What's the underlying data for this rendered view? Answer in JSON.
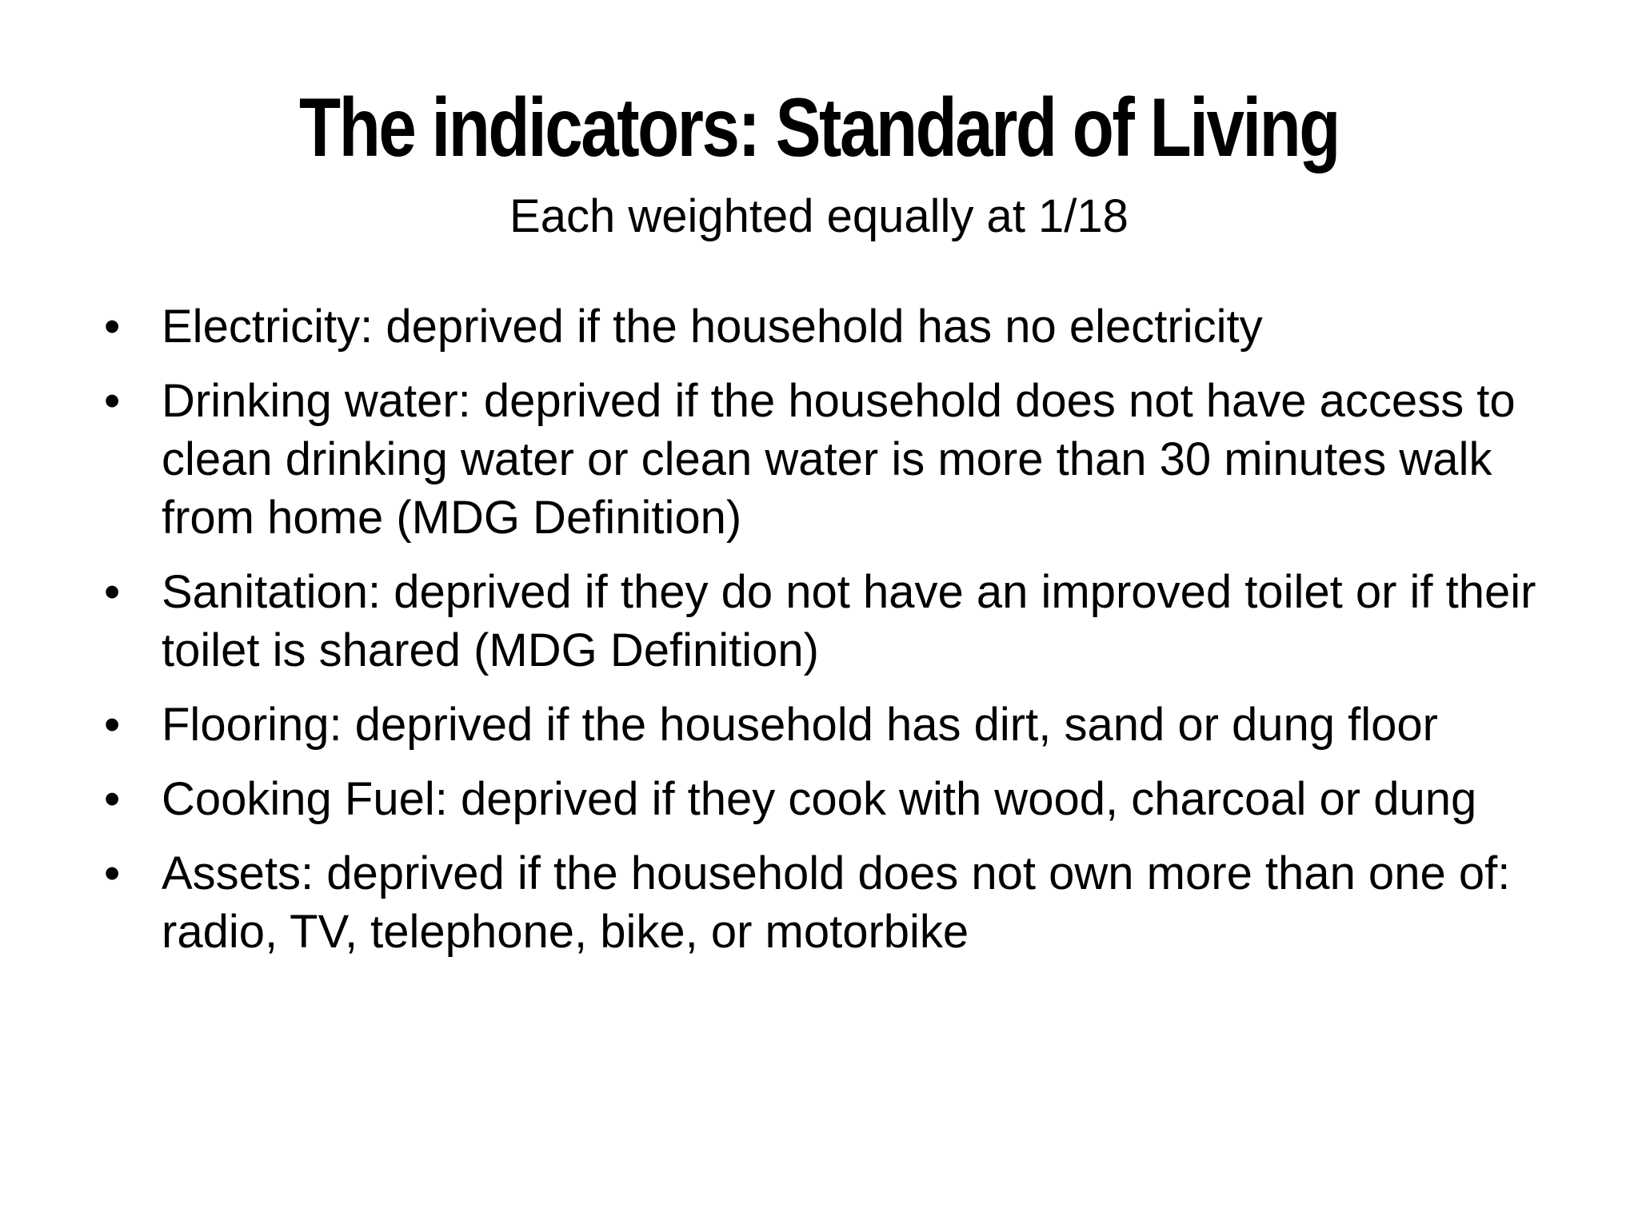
{
  "slide": {
    "title": "The indicators: Standard of Living",
    "subtitle": "Each weighted equally at 1/18",
    "bullet_glyph": "•",
    "bullets": [
      "Electricity: deprived if the household has no electricity",
      "Drinking water: deprived if the household does not have access to clean drinking water or clean water is more than 30 minutes walk from home (MDG Definition)",
      "Sanitation: deprived if they do not have an improved toilet or if their toilet is shared (MDG Definition)",
      "Flooring: deprived if the household has dirt, sand or dung floor",
      "Cooking Fuel: deprived if they cook with wood, charcoal or dung",
      "Assets: deprived if the household does not own more than one of: radio, TV, telephone, bike, or motorbike"
    ]
  }
}
